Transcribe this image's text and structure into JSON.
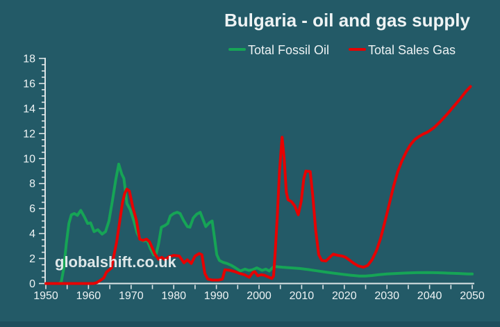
{
  "title": "Bulgaria - oil and gas supply",
  "watermark": "globalshift.co.uk",
  "colors": {
    "background": "#235A67",
    "bottom_bar": "#1E4E5C",
    "axis": "#DDE5E7",
    "text": "#EEF3F4",
    "fossil_oil_green": "#16A456",
    "sales_gas_red": "#E60202"
  },
  "legend": {
    "items": [
      {
        "label": "Total Fossil Oil"
      },
      {
        "label": "Total Sales Gas"
      }
    ]
  },
  "chart_data": {
    "type": "line",
    "title": "Bulgaria - oil and gas supply",
    "xlabel": "",
    "ylabel": "",
    "xlim": [
      1950,
      2050
    ],
    "ylim": [
      0,
      18
    ],
    "grid": "off",
    "legend_position": "top",
    "x_tick_labels": [
      "1950",
      "1960",
      "1970",
      "1980",
      "1990",
      "2000",
      "2010",
      "2020",
      "2030",
      "2040",
      "2050"
    ],
    "x_major_step": 10,
    "x_minor_step": 5,
    "y_tick_labels": [
      "0",
      "2",
      "4",
      "6",
      "8",
      "10",
      "12",
      "14",
      "16",
      "18"
    ],
    "y_major_step": 2,
    "y_minor_step": 0.5,
    "series": [
      {
        "name": "Total Fossil Oil",
        "color": "#16A456",
        "points": [
          [
            1950,
            0
          ],
          [
            1953,
            0
          ],
          [
            1953.6,
            0.1
          ],
          [
            1954.2,
            1.2
          ],
          [
            1954.8,
            3.2
          ],
          [
            1955.4,
            4.8
          ],
          [
            1956,
            5.5
          ],
          [
            1956.7,
            5.6
          ],
          [
            1957.4,
            5.45
          ],
          [
            1958.2,
            5.85
          ],
          [
            1959,
            5.35
          ],
          [
            1959.8,
            4.8
          ],
          [
            1960.5,
            4.85
          ],
          [
            1961.3,
            4.15
          ],
          [
            1962.2,
            4.3
          ],
          [
            1963.2,
            3.95
          ],
          [
            1964,
            4.15
          ],
          [
            1964.8,
            5.0
          ],
          [
            1965.6,
            6.6
          ],
          [
            1966.4,
            8.3
          ],
          [
            1967.1,
            9.55
          ],
          [
            1967.8,
            8.75
          ],
          [
            1968.3,
            8.4
          ],
          [
            1969,
            6.4
          ],
          [
            1969.8,
            5.9
          ],
          [
            1970.6,
            5.05
          ],
          [
            1971.4,
            4.05
          ],
          [
            1972.2,
            3.5
          ],
          [
            1973,
            3.4
          ],
          [
            1973.8,
            3.45
          ],
          [
            1974.5,
            2.8
          ],
          [
            1975.3,
            2.3
          ],
          [
            1975.8,
            2.25
          ],
          [
            1976.4,
            3.1
          ],
          [
            1977.1,
            4.5
          ],
          [
            1978,
            4.65
          ],
          [
            1978.6,
            4.8
          ],
          [
            1979.2,
            5.4
          ],
          [
            1980,
            5.6
          ],
          [
            1980.8,
            5.7
          ],
          [
            1981.5,
            5.6
          ],
          [
            1982.3,
            5.05
          ],
          [
            1983.2,
            4.55
          ],
          [
            1983.8,
            4.5
          ],
          [
            1984.6,
            5.25
          ],
          [
            1985.4,
            5.55
          ],
          [
            1986.2,
            5.7
          ],
          [
            1987,
            5.0
          ],
          [
            1987.5,
            4.55
          ],
          [
            1988.3,
            4.85
          ],
          [
            1989,
            5.0
          ],
          [
            1989.5,
            3.8
          ],
          [
            1990.1,
            2.3
          ],
          [
            1990.7,
            1.85
          ],
          [
            1991.5,
            1.7
          ],
          [
            1992.5,
            1.6
          ],
          [
            1993.5,
            1.45
          ],
          [
            1994.5,
            1.25
          ],
          [
            1995.6,
            1.0
          ],
          [
            1996.7,
            1.15
          ],
          [
            1997.6,
            1.05
          ],
          [
            1998.5,
            1.1
          ],
          [
            1999.5,
            1.25
          ],
          [
            2000.7,
            1.05
          ],
          [
            2001.6,
            1.15
          ],
          [
            2002.4,
            1.0
          ],
          [
            2003.3,
            1.3
          ],
          [
            2004,
            1.35
          ],
          [
            2005.5,
            1.3
          ],
          [
            2007.5,
            1.25
          ],
          [
            2009.5,
            1.2
          ],
          [
            2011.5,
            1.12
          ],
          [
            2013.5,
            1.02
          ],
          [
            2015.5,
            0.92
          ],
          [
            2017.5,
            0.83
          ],
          [
            2019.5,
            0.74
          ],
          [
            2021.5,
            0.66
          ],
          [
            2023.5,
            0.6
          ],
          [
            2025,
            0.6
          ],
          [
            2026.5,
            0.64
          ],
          [
            2028,
            0.7
          ],
          [
            2030,
            0.76
          ],
          [
            2032,
            0.8
          ],
          [
            2034.5,
            0.84
          ],
          [
            2037,
            0.87
          ],
          [
            2039.5,
            0.88
          ],
          [
            2042,
            0.86
          ],
          [
            2044.5,
            0.83
          ],
          [
            2047,
            0.8
          ],
          [
            2049,
            0.77
          ],
          [
            2050,
            0.76
          ]
        ]
      },
      {
        "name": "Total Sales Gas",
        "color": "#E60202",
        "points": [
          [
            1950,
            0
          ],
          [
            1961.2,
            0
          ],
          [
            1962,
            0.08
          ],
          [
            1963,
            0.3
          ],
          [
            1963.6,
            0.45
          ],
          [
            1964.2,
            0.9
          ],
          [
            1964.9,
            1.1
          ],
          [
            1965.4,
            1.25
          ],
          [
            1966,
            2.3
          ],
          [
            1966.6,
            3.3
          ],
          [
            1967.3,
            4.9
          ],
          [
            1968,
            6.5
          ],
          [
            1968.5,
            7.2
          ],
          [
            1969,
            7.55
          ],
          [
            1969.6,
            7.4
          ],
          [
            1970.4,
            6.1
          ],
          [
            1971.2,
            5.1
          ],
          [
            1972,
            3.55
          ],
          [
            1972.8,
            3.45
          ],
          [
            1973.6,
            3.55
          ],
          [
            1974.3,
            3.35
          ],
          [
            1974.9,
            2.9
          ],
          [
            1975.6,
            2.35
          ],
          [
            1976.4,
            1.95
          ],
          [
            1977.2,
            2.1
          ],
          [
            1978,
            1.9
          ],
          [
            1978.9,
            2.15
          ],
          [
            1980,
            2.25
          ],
          [
            1981.3,
            2.2
          ],
          [
            1982.4,
            1.65
          ],
          [
            1983.2,
            1.9
          ],
          [
            1984.1,
            1.6
          ],
          [
            1985,
            2.2
          ],
          [
            1986,
            2.4
          ],
          [
            1986.6,
            2.3
          ],
          [
            1987.3,
            0.8
          ],
          [
            1988,
            0.35
          ],
          [
            1989,
            0.28
          ],
          [
            1990.5,
            0.28
          ],
          [
            1991.4,
            0.35
          ],
          [
            1992,
            1.1
          ],
          [
            1993.2,
            1.05
          ],
          [
            1994.3,
            0.95
          ],
          [
            1995.5,
            0.8
          ],
          [
            1996.6,
            0.7
          ],
          [
            1997.7,
            0.5
          ],
          [
            1998.6,
            0.9
          ],
          [
            1999,
            0.95
          ],
          [
            1999.7,
            0.62
          ],
          [
            2000.5,
            0.7
          ],
          [
            2001.2,
            0.67
          ],
          [
            2002,
            0.55
          ],
          [
            2003,
            0.4
          ],
          [
            2003.4,
            0.6
          ],
          [
            2003.8,
            2.5
          ],
          [
            2004.3,
            5.5
          ],
          [
            2004.8,
            9.0
          ],
          [
            2005.4,
            11.7
          ],
          [
            2005.9,
            10.0
          ],
          [
            2006.4,
            7.3
          ],
          [
            2006.8,
            6.7
          ],
          [
            2007.6,
            6.55
          ],
          [
            2008.4,
            6.2
          ],
          [
            2009.2,
            5.5
          ],
          [
            2009.9,
            6.6
          ],
          [
            2010.5,
            8.4
          ],
          [
            2011,
            9.0
          ],
          [
            2012,
            8.95
          ],
          [
            2012.6,
            7.0
          ],
          [
            2013.3,
            4.2
          ],
          [
            2014,
            2.3
          ],
          [
            2014.7,
            1.85
          ],
          [
            2015.7,
            1.8
          ],
          [
            2016.6,
            2.1
          ],
          [
            2017.4,
            2.35
          ],
          [
            2018.5,
            2.25
          ],
          [
            2019.5,
            2.2
          ],
          [
            2020.3,
            2.1
          ],
          [
            2021.3,
            1.85
          ],
          [
            2022.3,
            1.6
          ],
          [
            2023.3,
            1.4
          ],
          [
            2024.5,
            1.3
          ],
          [
            2025.5,
            1.45
          ],
          [
            2026.5,
            1.9
          ],
          [
            2027.5,
            2.6
          ],
          [
            2028.5,
            3.6
          ],
          [
            2029.5,
            4.9
          ],
          [
            2030.5,
            6.3
          ],
          [
            2031.5,
            7.7
          ],
          [
            2032.5,
            8.9
          ],
          [
            2033.5,
            9.8
          ],
          [
            2034.5,
            10.5
          ],
          [
            2035.5,
            11.1
          ],
          [
            2036.5,
            11.5
          ],
          [
            2037.5,
            11.75
          ],
          [
            2038.5,
            11.95
          ],
          [
            2039.5,
            12.1
          ],
          [
            2041,
            12.45
          ],
          [
            2042.5,
            12.95
          ],
          [
            2044,
            13.5
          ],
          [
            2045.5,
            14.1
          ],
          [
            2047,
            14.7
          ],
          [
            2048.5,
            15.35
          ],
          [
            2049.6,
            15.75
          ]
        ]
      }
    ]
  }
}
